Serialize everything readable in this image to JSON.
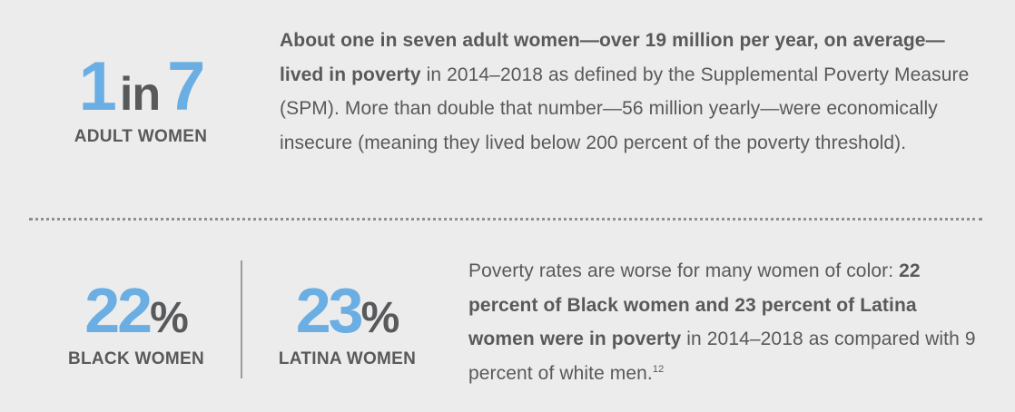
{
  "stat_adult_women": {
    "number": "1",
    "connector": "in",
    "denominator": "7",
    "label": "ADULT WOMEN"
  },
  "paragraph_1": {
    "bold": "About one in seven adult women—over 19 million per year, on average—lived in poverty",
    "text": " in 2014–2018 as defined by the Supplemental Poverty Measure (SPM). More than double that number—56 million yearly—were economically insecure (meaning they lived below 200 percent of the poverty threshold)."
  },
  "stat_black_women": {
    "value": "22",
    "unit": "%",
    "label": "BLACK WOMEN"
  },
  "stat_latina_women": {
    "value": "23",
    "unit": "%",
    "label": "LATINA WOMEN"
  },
  "paragraph_2": {
    "intro": "Poverty rates are worse for many women of color: ",
    "bold": "22 percent of Black women and 23 percent of Latina women were in poverty",
    "text": " in 2014–2018 as compared with 9 percent of white men.",
    "footnote": "12"
  },
  "colors": {
    "accent_blue": "#6aaee3",
    "text_gray": "#58595b",
    "background": "#ececec"
  }
}
